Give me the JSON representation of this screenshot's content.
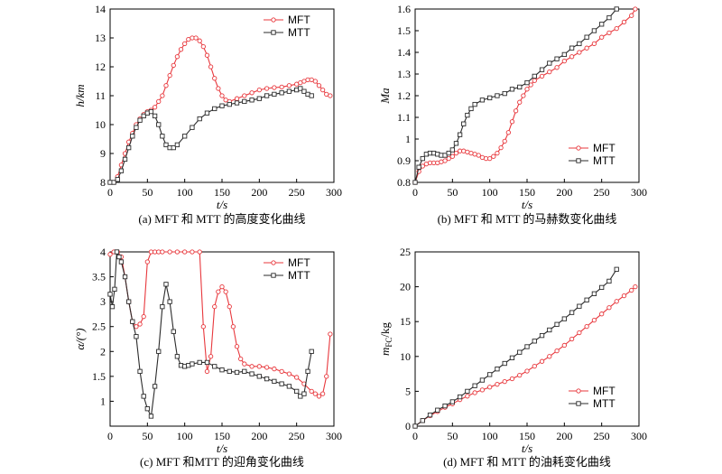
{
  "colors": {
    "MFT": "#e8383d",
    "MTT": "#2b2b2b"
  },
  "chart_data": [
    {
      "type": "line",
      "caption": "(a) MFT 和 MTT 的高度变化曲线",
      "xlabel": "t/s",
      "ylabel": "h/km",
      "xlim": [
        0,
        300
      ],
      "ylim": [
        8,
        14
      ],
      "xticks": [
        0,
        50,
        100,
        150,
        200,
        250,
        300
      ],
      "yticks": [
        8,
        9,
        10,
        11,
        12,
        13,
        14
      ],
      "legend": "top-right",
      "series": [
        {
          "name": "MFT",
          "marker": "circle",
          "x": [
            0,
            5,
            10,
            15,
            20,
            25,
            30,
            35,
            40,
            45,
            50,
            55,
            60,
            65,
            70,
            75,
            80,
            85,
            90,
            95,
            100,
            105,
            110,
            115,
            120,
            125,
            130,
            135,
            140,
            145,
            150,
            155,
            160,
            170,
            180,
            190,
            200,
            210,
            220,
            230,
            240,
            250,
            255,
            260,
            265,
            270,
            275,
            280,
            285,
            290,
            295
          ],
          "values": [
            8.0,
            8.0,
            8.2,
            8.6,
            9.0,
            9.4,
            9.7,
            10.0,
            10.2,
            10.35,
            10.45,
            10.5,
            10.6,
            10.8,
            11.0,
            11.35,
            11.7,
            12.05,
            12.35,
            12.6,
            12.8,
            12.95,
            13.0,
            13.0,
            12.9,
            12.7,
            12.4,
            12.0,
            11.6,
            11.25,
            11.0,
            10.85,
            10.8,
            10.9,
            11.0,
            11.1,
            11.2,
            11.25,
            11.28,
            11.3,
            11.35,
            11.4,
            11.45,
            11.5,
            11.55,
            11.55,
            11.5,
            11.35,
            11.2,
            11.05,
            11.0
          ]
        },
        {
          "name": "MTT",
          "marker": "square",
          "x": [
            0,
            5,
            10,
            15,
            20,
            25,
            30,
            35,
            40,
            45,
            50,
            55,
            60,
            65,
            70,
            75,
            80,
            85,
            90,
            100,
            110,
            120,
            130,
            140,
            150,
            160,
            170,
            180,
            190,
            200,
            210,
            220,
            230,
            240,
            250,
            255,
            260,
            265,
            270
          ],
          "values": [
            8.0,
            8.0,
            8.1,
            8.4,
            8.8,
            9.2,
            9.6,
            9.9,
            10.15,
            10.3,
            10.4,
            10.45,
            10.3,
            10.0,
            9.6,
            9.3,
            9.2,
            9.2,
            9.3,
            9.6,
            9.9,
            10.2,
            10.4,
            10.55,
            10.65,
            10.7,
            10.75,
            10.8,
            10.85,
            10.9,
            11.0,
            11.05,
            11.1,
            11.15,
            11.2,
            11.25,
            11.15,
            11.05,
            11.0
          ]
        }
      ]
    },
    {
      "type": "line",
      "caption": "(b) MFT 和 MTT 的马赫数变化曲线",
      "xlabel": "t/s",
      "ylabel": "Ma",
      "xlim": [
        0,
        300
      ],
      "ylim": [
        0.8,
        1.6
      ],
      "xticks": [
        0,
        50,
        100,
        150,
        200,
        250,
        300
      ],
      "yticks": [
        0.8,
        0.9,
        1.0,
        1.1,
        1.2,
        1.3,
        1.4,
        1.5,
        1.6
      ],
      "legend": "bottom-right",
      "series": [
        {
          "name": "MFT",
          "marker": "circle",
          "x": [
            0,
            5,
            10,
            15,
            20,
            25,
            30,
            35,
            40,
            45,
            50,
            55,
            60,
            65,
            70,
            75,
            80,
            85,
            90,
            95,
            100,
            105,
            110,
            115,
            120,
            125,
            130,
            135,
            140,
            145,
            150,
            155,
            160,
            170,
            180,
            190,
            200,
            210,
            220,
            230,
            240,
            250,
            260,
            270,
            280,
            290,
            295
          ],
          "values": [
            0.8,
            0.85,
            0.875,
            0.885,
            0.89,
            0.89,
            0.89,
            0.895,
            0.9,
            0.91,
            0.92,
            0.935,
            0.945,
            0.945,
            0.94,
            0.935,
            0.93,
            0.925,
            0.915,
            0.91,
            0.91,
            0.92,
            0.935,
            0.96,
            0.99,
            1.03,
            1.08,
            1.13,
            1.17,
            1.2,
            1.23,
            1.25,
            1.27,
            1.29,
            1.31,
            1.33,
            1.36,
            1.38,
            1.4,
            1.42,
            1.44,
            1.47,
            1.49,
            1.51,
            1.54,
            1.57,
            1.6
          ]
        },
        {
          "name": "MTT",
          "marker": "square",
          "x": [
            0,
            5,
            10,
            15,
            20,
            25,
            30,
            35,
            40,
            45,
            50,
            55,
            60,
            65,
            70,
            75,
            80,
            90,
            100,
            110,
            120,
            130,
            140,
            150,
            160,
            170,
            180,
            190,
            200,
            210,
            220,
            230,
            240,
            250,
            260,
            270
          ],
          "values": [
            0.8,
            0.87,
            0.91,
            0.93,
            0.935,
            0.935,
            0.93,
            0.925,
            0.925,
            0.935,
            0.95,
            0.98,
            1.02,
            1.07,
            1.11,
            1.14,
            1.16,
            1.18,
            1.19,
            1.2,
            1.21,
            1.23,
            1.24,
            1.26,
            1.29,
            1.32,
            1.35,
            1.37,
            1.39,
            1.42,
            1.44,
            1.47,
            1.5,
            1.53,
            1.56,
            1.6
          ]
        }
      ]
    },
    {
      "type": "line",
      "caption": "(c) MFT 和MTT 的迎角变化曲线",
      "xlabel": "t/s",
      "ylabel": "α/(°)",
      "xlim": [
        0,
        300
      ],
      "ylim": [
        0.5,
        4.0
      ],
      "xticks": [
        0,
        50,
        100,
        150,
        200,
        250,
        300
      ],
      "yticks": [
        1.0,
        1.5,
        2.0,
        2.5,
        3.0,
        3.5,
        4.0
      ],
      "legend": "top-right",
      "series": [
        {
          "name": "MFT",
          "marker": "circle",
          "x": [
            0,
            5,
            10,
            15,
            20,
            25,
            30,
            35,
            40,
            45,
            50,
            55,
            60,
            65,
            70,
            80,
            90,
            100,
            110,
            120,
            125,
            130,
            135,
            140,
            145,
            150,
            155,
            160,
            165,
            170,
            175,
            180,
            190,
            200,
            210,
            220,
            230,
            240,
            250,
            260,
            270,
            275,
            280,
            285,
            290,
            295
          ],
          "values": [
            3.95,
            4.0,
            4.0,
            3.9,
            3.5,
            3.0,
            2.6,
            2.5,
            2.55,
            2.7,
            3.8,
            4.0,
            4.0,
            4.0,
            4.0,
            4.0,
            4.0,
            4.0,
            4.0,
            4.0,
            2.5,
            1.6,
            1.9,
            2.9,
            3.2,
            3.3,
            3.2,
            2.9,
            2.5,
            2.1,
            1.85,
            1.75,
            1.7,
            1.7,
            1.68,
            1.65,
            1.6,
            1.55,
            1.48,
            1.35,
            1.2,
            1.15,
            1.1,
            1.15,
            1.5,
            2.35
          ]
        },
        {
          "name": "MTT",
          "marker": "square",
          "x": [
            0,
            3,
            6,
            9,
            12,
            15,
            20,
            25,
            30,
            35,
            40,
            45,
            50,
            55,
            60,
            65,
            70,
            75,
            80,
            85,
            90,
            95,
            100,
            105,
            110,
            120,
            130,
            140,
            150,
            160,
            170,
            180,
            190,
            200,
            210,
            220,
            230,
            240,
            250,
            255,
            260,
            265,
            270
          ],
          "values": [
            3.15,
            2.9,
            3.25,
            4.0,
            3.9,
            3.8,
            3.5,
            3.0,
            2.6,
            2.3,
            1.6,
            1.1,
            0.85,
            0.7,
            1.3,
            2.0,
            2.9,
            3.35,
            3.0,
            2.4,
            1.9,
            1.72,
            1.7,
            1.72,
            1.75,
            1.78,
            1.78,
            1.7,
            1.63,
            1.6,
            1.58,
            1.6,
            1.55,
            1.5,
            1.45,
            1.4,
            1.35,
            1.3,
            1.2,
            1.1,
            1.15,
            1.6,
            2.0
          ]
        }
      ]
    },
    {
      "type": "line",
      "caption": "(d) MFT 和 MTT 的油耗变化曲线",
      "xlabel": "t/s",
      "ylabel": "m_FC/kg",
      "ylabel_main": "m",
      "ylabel_sub": "FC",
      "ylabel_unit": "/kg",
      "xlim": [
        0,
        300
      ],
      "ylim": [
        0,
        25
      ],
      "xticks": [
        0,
        50,
        100,
        150,
        200,
        250,
        300
      ],
      "yticks": [
        0,
        5,
        10,
        15,
        20,
        25
      ],
      "legend": "bottom-right",
      "series": [
        {
          "name": "MFT",
          "marker": "circle",
          "x": [
            0,
            10,
            20,
            30,
            40,
            50,
            60,
            70,
            80,
            90,
            100,
            110,
            120,
            130,
            140,
            150,
            160,
            170,
            180,
            190,
            200,
            210,
            220,
            230,
            240,
            250,
            260,
            270,
            280,
            290,
            295
          ],
          "values": [
            0,
            0.8,
            1.5,
            2.1,
            2.7,
            3.2,
            3.8,
            4.3,
            4.8,
            5.2,
            5.6,
            6.0,
            6.4,
            6.8,
            7.3,
            7.9,
            8.6,
            9.3,
            10.0,
            10.8,
            11.6,
            12.5,
            13.4,
            14.3,
            15.2,
            16.1,
            17.0,
            17.9,
            18.7,
            19.5,
            20.0
          ]
        },
        {
          "name": "MTT",
          "marker": "square",
          "x": [
            0,
            10,
            20,
            30,
            40,
            50,
            60,
            70,
            80,
            90,
            100,
            110,
            120,
            130,
            140,
            150,
            160,
            170,
            180,
            190,
            200,
            210,
            220,
            230,
            240,
            250,
            260,
            270
          ],
          "values": [
            0,
            0.8,
            1.6,
            2.3,
            2.9,
            3.5,
            4.2,
            5.0,
            5.8,
            6.6,
            7.4,
            8.2,
            9.0,
            9.8,
            10.6,
            11.4,
            12.2,
            13.0,
            13.8,
            14.6,
            15.4,
            16.3,
            17.2,
            18.1,
            19.0,
            19.9,
            20.8,
            22.5
          ]
        }
      ]
    }
  ]
}
